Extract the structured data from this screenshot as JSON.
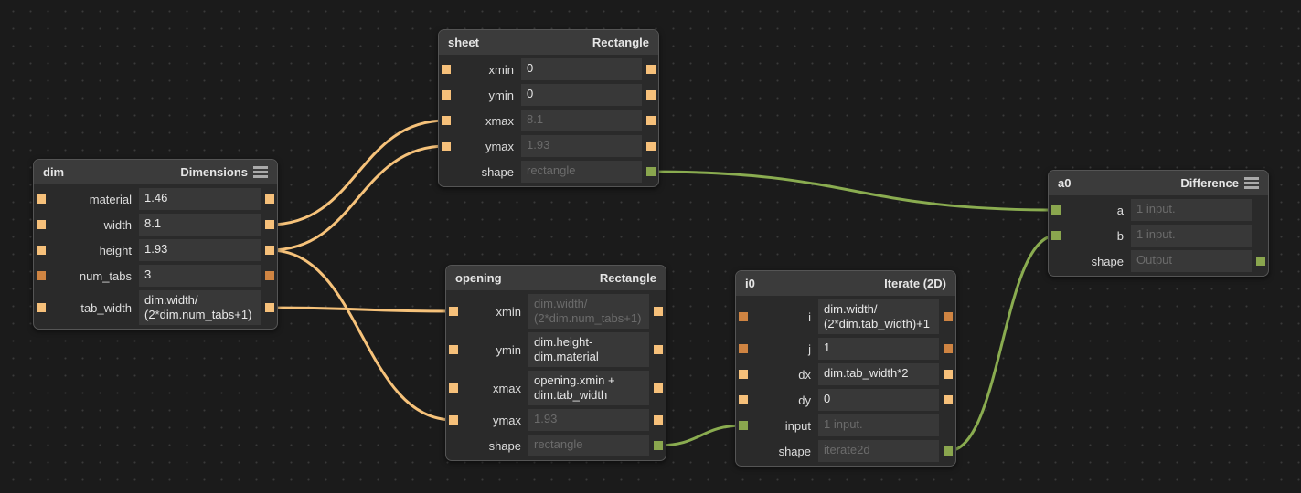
{
  "colors": {
    "float": "#f6c07a",
    "int": "#cf8442",
    "shape": "#8aa64e",
    "background": "#1b1b1b"
  },
  "nodes": [
    {
      "id": "sheet",
      "name": "sheet",
      "type": "Rectangle",
      "menu": false,
      "rows": [
        {
          "label": "xmin",
          "value": "0",
          "port": "float",
          "right": true
        },
        {
          "label": "ymin",
          "value": "0",
          "port": "float",
          "right": true
        },
        {
          "label": "xmax",
          "value": "8.1",
          "dim": true,
          "port": "float",
          "right": true
        },
        {
          "label": "ymax",
          "value": "1.93",
          "dim": true,
          "port": "float",
          "right": true
        },
        {
          "label": "shape",
          "value": "rectangle",
          "dim": true,
          "port": null,
          "right": "shape"
        }
      ]
    },
    {
      "id": "dim",
      "name": "dim",
      "type": "Dimensions",
      "menu": true,
      "rows": [
        {
          "label": "material",
          "value": "1.46",
          "port": "float",
          "right": true
        },
        {
          "label": "width",
          "value": "8.1",
          "port": "float",
          "right": true
        },
        {
          "label": "height",
          "value": "1.93",
          "port": "float",
          "right": true
        },
        {
          "label": "num_tabs",
          "value": "3",
          "port": "int",
          "right": true
        },
        {
          "label": "tab_width",
          "value": "dim.width/\n(2*dim.num_tabs+1)",
          "port": "float",
          "right": true
        }
      ]
    },
    {
      "id": "opening",
      "name": "opening",
      "type": "Rectangle",
      "menu": false,
      "rows": [
        {
          "label": "xmin",
          "value": "dim.width/\n(2*dim.num_tabs+1)",
          "dim": true,
          "port": "float",
          "right": true
        },
        {
          "label": "ymin",
          "value": "dim.height-\ndim.material",
          "port": "float",
          "right": true
        },
        {
          "label": "xmax",
          "value": "opening.xmin +\ndim.tab_width",
          "port": "float",
          "right": true
        },
        {
          "label": "ymax",
          "value": "1.93",
          "dim": true,
          "port": "float",
          "right": true
        },
        {
          "label": "shape",
          "value": "rectangle",
          "dim": true,
          "port": null,
          "right": "shape"
        }
      ]
    },
    {
      "id": "i0",
      "name": "i0",
      "type": "Iterate (2D)",
      "menu": false,
      "rows": [
        {
          "label": "i",
          "value": "dim.width/\n(2*dim.tab_width)+1",
          "port": "int",
          "right": true
        },
        {
          "label": "j",
          "value": "1",
          "port": "int",
          "right": true
        },
        {
          "label": "dx",
          "value": "dim.tab_width*2",
          "port": "float",
          "right": true
        },
        {
          "label": "dy",
          "value": "0",
          "port": "float",
          "right": true
        },
        {
          "label": "input",
          "value": "1 input.",
          "dim": true,
          "port": "shape",
          "right": false
        },
        {
          "label": "shape",
          "value": "iterate2d",
          "dim": true,
          "port": null,
          "right": "shape"
        }
      ]
    },
    {
      "id": "a0",
      "name": "a0",
      "type": "Difference",
      "menu": true,
      "rows": [
        {
          "label": "a",
          "value": "1 input.",
          "dim": true,
          "port": "shape",
          "right": false
        },
        {
          "label": "b",
          "value": "1 input.",
          "dim": true,
          "port": "shape",
          "right": false
        },
        {
          "label": "shape",
          "value": "Output",
          "dim": true,
          "port": null,
          "right": "shape"
        }
      ]
    }
  ],
  "connections": [
    {
      "from": "dim.width",
      "to": "sheet.xmax",
      "kind": "float"
    },
    {
      "from": "dim.height",
      "to": "sheet.ymax",
      "kind": "float"
    },
    {
      "from": "dim.height",
      "to": "opening.ymax",
      "kind": "float"
    },
    {
      "from": "dim.tab_width",
      "to": "opening.xmin",
      "kind": "float"
    },
    {
      "from": "sheet.shape",
      "to": "a0.a",
      "kind": "shape"
    },
    {
      "from": "opening.shape",
      "to": "i0.input",
      "kind": "shape"
    },
    {
      "from": "i0.shape",
      "to": "a0.b",
      "kind": "shape"
    }
  ]
}
